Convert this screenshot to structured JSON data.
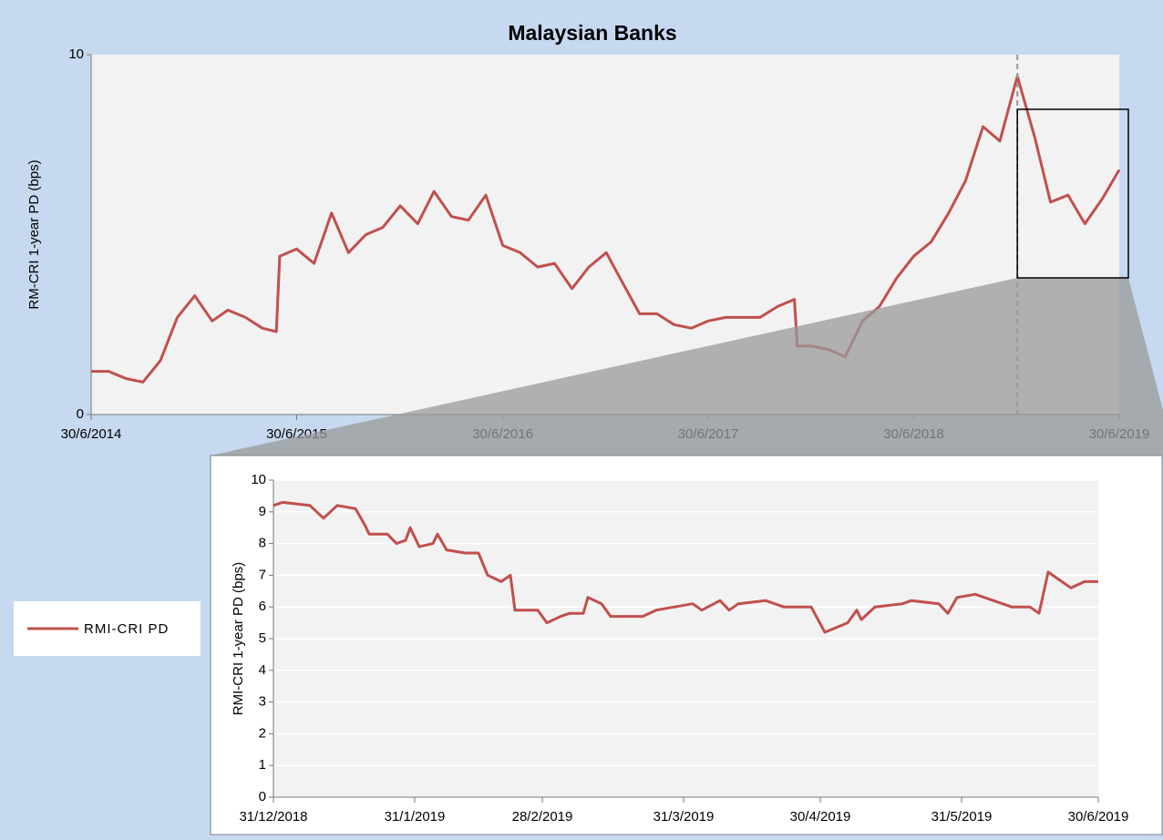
{
  "chart_data": [
    {
      "type": "line",
      "title": "Malaysian Banks",
      "y_label": "RM-CRI  1-year PD (bps)",
      "x": [
        "2014-06-30",
        "2014-07-31",
        "2014-08-31",
        "2014-09-30",
        "2014-10-31",
        "2014-11-30",
        "2014-12-31",
        "2015-01-31",
        "2015-02-28",
        "2015-03-31",
        "2015-04-30",
        "2015-05-25",
        "2015-05-31",
        "2015-06-30",
        "2015-07-31",
        "2015-08-31",
        "2015-09-30",
        "2015-10-31",
        "2015-11-30",
        "2015-12-31",
        "2016-01-31",
        "2016-02-29",
        "2016-03-31",
        "2016-04-30",
        "2016-05-31",
        "2016-06-30",
        "2016-07-31",
        "2016-08-31",
        "2016-09-30",
        "2016-10-31",
        "2016-11-30",
        "2016-12-31",
        "2017-01-31",
        "2017-02-28",
        "2017-03-31",
        "2017-04-30",
        "2017-05-31",
        "2017-06-30",
        "2017-07-31",
        "2017-08-31",
        "2017-09-30",
        "2017-10-31",
        "2017-11-30",
        "2017-12-05",
        "2017-12-31",
        "2018-01-31",
        "2018-02-28",
        "2018-03-31",
        "2018-04-30",
        "2018-05-31",
        "2018-06-30",
        "2018-07-31",
        "2018-08-31",
        "2018-09-30",
        "2018-10-31",
        "2018-11-30",
        "2018-12-31",
        "2019-01-31",
        "2019-02-28",
        "2019-03-31",
        "2019-04-30",
        "2019-05-31",
        "2019-06-30"
      ],
      "series": [
        {
          "name": "RMI-CRI PD",
          "color": "#c0504d",
          "values": [
            1.2,
            1.2,
            1.0,
            0.9,
            1.5,
            2.7,
            3.3,
            2.6,
            2.9,
            2.7,
            2.4,
            2.3,
            4.4,
            4.6,
            4.2,
            5.6,
            4.5,
            5.0,
            5.2,
            5.8,
            5.3,
            6.2,
            5.5,
            5.4,
            6.1,
            4.7,
            4.5,
            4.1,
            4.2,
            3.5,
            4.1,
            4.5,
            3.6,
            2.8,
            2.8,
            2.5,
            2.4,
            2.6,
            2.7,
            2.7,
            2.7,
            3.0,
            3.2,
            1.9,
            1.9,
            1.8,
            1.6,
            2.6,
            3.0,
            3.8,
            4.4,
            4.8,
            5.6,
            6.5,
            8.0,
            7.6,
            9.4,
            7.7,
            5.9,
            6.1,
            5.3,
            6.0,
            6.8
          ]
        }
      ],
      "xlim": [
        "2014-06-30",
        "2019-06-30"
      ],
      "xticks": [
        {
          "value": "2014-06-30",
          "label": "30/6/2014"
        },
        {
          "value": "2015-06-30",
          "label": "30/6/2015"
        },
        {
          "value": "2016-06-30",
          "label": "30/6/2016"
        },
        {
          "value": "2017-06-30",
          "label": "30/6/2017"
        },
        {
          "value": "2018-06-30",
          "label": "30/6/2018"
        },
        {
          "value": "2019-06-30",
          "label": "30/6/2019"
        }
      ],
      "ylim": [
        0,
        10
      ],
      "yticks": [
        0,
        10
      ],
      "grid": false
    },
    {
      "type": "line",
      "y_label": "RMI-CRI  1-year PD (bps)",
      "x": [
        "2018-12-31",
        "2019-01-02",
        "2019-01-08",
        "2019-01-11",
        "2019-01-14",
        "2019-01-18",
        "2019-01-20",
        "2019-01-21",
        "2019-01-25",
        "2019-01-27",
        "2019-01-29",
        "2019-01-30",
        "2019-02-01",
        "2019-02-04",
        "2019-02-05",
        "2019-02-07",
        "2019-02-11",
        "2019-02-14",
        "2019-02-16",
        "2019-02-19",
        "2019-02-21",
        "2019-02-22",
        "2019-02-27",
        "2019-03-01",
        "2019-03-04",
        "2019-03-06",
        "2019-03-09",
        "2019-03-10",
        "2019-03-13",
        "2019-03-15",
        "2019-03-22",
        "2019-03-25",
        "2019-03-29",
        "2019-04-02",
        "2019-04-04",
        "2019-04-08",
        "2019-04-10",
        "2019-04-12",
        "2019-04-18",
        "2019-04-22",
        "2019-04-28",
        "2019-05-01",
        "2019-05-06",
        "2019-05-08",
        "2019-05-09",
        "2019-05-12",
        "2019-05-18",
        "2019-05-20",
        "2019-05-26",
        "2019-05-28",
        "2019-05-30",
        "2019-06-03",
        "2019-06-07",
        "2019-06-11",
        "2019-06-15",
        "2019-06-17",
        "2019-06-19",
        "2019-06-22",
        "2019-06-24",
        "2019-06-27",
        "2019-06-30"
      ],
      "series": [
        {
          "color": "#c0504d",
          "values": [
            9.2,
            9.3,
            9.2,
            8.8,
            9.2,
            9.1,
            8.6,
            8.3,
            8.3,
            8.0,
            8.1,
            8.5,
            7.9,
            8.0,
            8.3,
            7.8,
            7.7,
            7.7,
            7.0,
            6.8,
            7.0,
            5.9,
            5.9,
            5.5,
            5.7,
            5.8,
            5.8,
            6.3,
            6.1,
            5.7,
            5.7,
            5.9,
            6.0,
            6.1,
            5.9,
            6.2,
            5.9,
            6.1,
            6.2,
            6.0,
            6.0,
            5.2,
            5.5,
            5.9,
            5.6,
            6.0,
            6.1,
            6.2,
            6.1,
            5.8,
            6.3,
            6.4,
            6.2,
            6.0,
            6.0,
            5.8,
            7.1,
            6.8,
            6.6,
            6.8,
            6.8
          ]
        }
      ],
      "xlim": [
        "2018-12-31",
        "2019-06-30"
      ],
      "xticks": [
        {
          "value": "2018-12-31",
          "label": "31/12/2018"
        },
        {
          "value": "2019-01-31",
          "label": "31/1/2019"
        },
        {
          "value": "2019-02-28",
          "label": "28/2/2019"
        },
        {
          "value": "2019-03-31",
          "label": "31/3/2019"
        },
        {
          "value": "2019-04-30",
          "label": "30/4/2019"
        },
        {
          "value": "2019-05-31",
          "label": "31/5/2019"
        },
        {
          "value": "2019-06-30",
          "label": "30/6/2019"
        }
      ],
      "ylim": [
        0,
        10
      ],
      "yticks": [
        0,
        1,
        2,
        3,
        4,
        5,
        6,
        7,
        8,
        9,
        10
      ],
      "grid": true
    }
  ]
}
